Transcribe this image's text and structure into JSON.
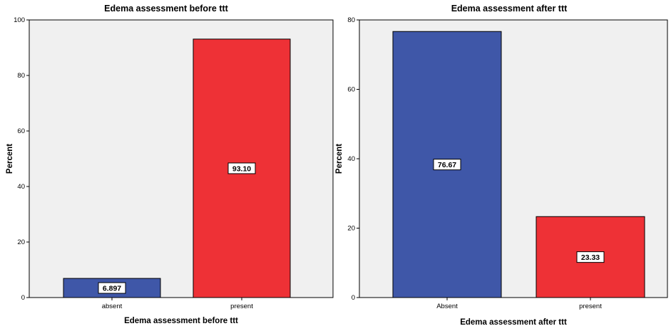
{
  "chart_data": [
    {
      "type": "bar",
      "title": "Edema assessment before ttt",
      "xlabel": "Edema assessment before ttt",
      "ylabel": "Percent",
      "categories": [
        "absent",
        "present"
      ],
      "values": [
        6.897,
        93.1
      ],
      "value_labels": [
        "6.897",
        "93.10"
      ],
      "bar_colors": [
        "#3f57a8",
        "#ee3136"
      ],
      "ylim": [
        0,
        100
      ],
      "yticks": [
        0,
        20,
        40,
        60,
        80,
        100
      ],
      "grid": false,
      "plot_background": "#f0f0f0"
    },
    {
      "type": "bar",
      "title": "Edema assessment after ttt",
      "xlabel": "Edema assessment after ttt",
      "ylabel": "Percent",
      "categories": [
        "Absent",
        "present"
      ],
      "values": [
        76.67,
        23.33
      ],
      "value_labels": [
        "76.67",
        "23.33"
      ],
      "bar_colors": [
        "#3f57a8",
        "#ee3136"
      ],
      "ylim": [
        0,
        80
      ],
      "yticks": [
        0,
        20,
        40,
        60,
        80
      ],
      "grid": false,
      "plot_background": "#f0f0f0"
    }
  ]
}
